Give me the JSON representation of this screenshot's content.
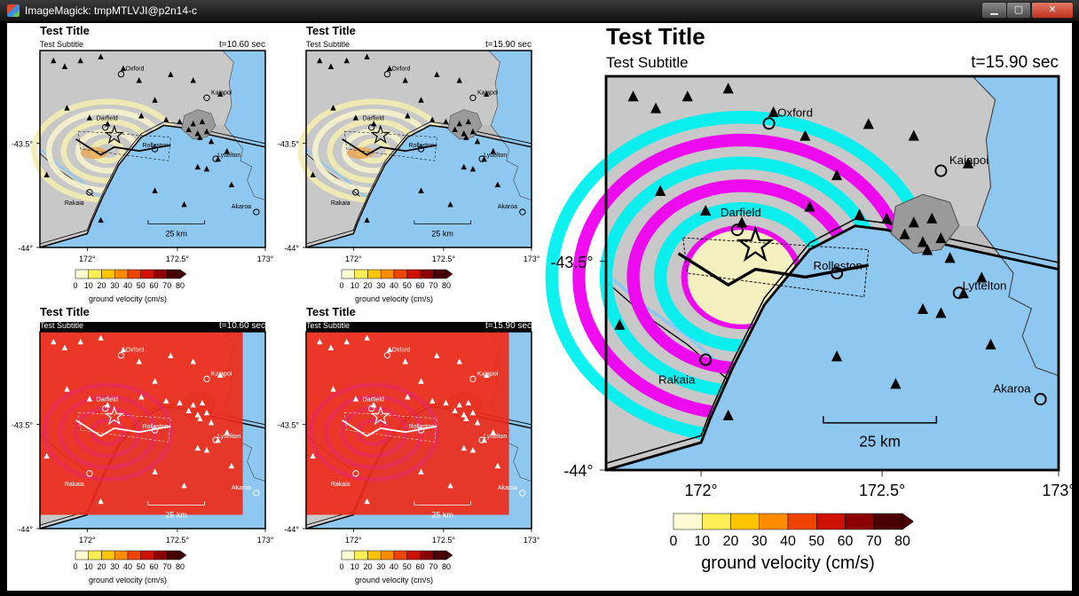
{
  "window": {
    "title": "ImageMagick: tmpMTLVJI@p2n14-c",
    "icon": "imagemagick-icon",
    "controls": {
      "minimize": "minimize-icon",
      "maximize": "maximize-icon",
      "close": "close-icon"
    }
  },
  "colors": {
    "land": "#c8c8c8",
    "water": "#8ec8f0",
    "urban": "#9a9a9a",
    "cyan": "#00f0f0",
    "magenta": "#f000f0",
    "red_overlay": "#ee2a1a",
    "light_yellow": "#f5f0c0"
  },
  "colorbar": {
    "ticks": [
      "0",
      "10",
      "20",
      "30",
      "40",
      "50",
      "60",
      "70",
      "80"
    ],
    "label": "ground velocity (cm/s)",
    "colors": [
      "#fffcd4",
      "#ffee55",
      "#ffc400",
      "#ff8c00",
      "#ee4400",
      "#cc1100",
      "#8b0000",
      "#4a0000"
    ]
  },
  "map_labels": {
    "lat_ticks": [
      "-43.5°",
      "-44°"
    ],
    "lon_ticks": [
      "172°",
      "172.5°",
      "173°"
    ],
    "places": [
      "Oxford",
      "Kaiapoi",
      "Darfield",
      "Rolleston",
      "Lyttelton",
      "Rakaia",
      "Akaroa"
    ],
    "scalebar": "25 km"
  },
  "panels": [
    {
      "id": "small-top-left",
      "title": "Test Title",
      "subtitle": "Test Subtitle",
      "time": "t=10.60 sec",
      "style": "yellow",
      "subtitle_band": false
    },
    {
      "id": "small-top-right",
      "title": "Test Title",
      "subtitle": "Test Subtitle",
      "time": "t=15.90 sec",
      "style": "yellow",
      "subtitle_band": false
    },
    {
      "id": "small-bottom-left",
      "title": "Test Title",
      "subtitle": "Test Subtitle",
      "time": "t=10.60 sec",
      "style": "red",
      "subtitle_band": true
    },
    {
      "id": "small-bottom-right",
      "title": "Test Title",
      "subtitle": "Test Subtitle",
      "time": "t=15.90 sec",
      "style": "red",
      "subtitle_band": true
    },
    {
      "id": "large",
      "title": "Test Title",
      "subtitle": "Test Subtitle",
      "time": "t=15.90 sec",
      "style": "cyan",
      "subtitle_band": false
    }
  ]
}
